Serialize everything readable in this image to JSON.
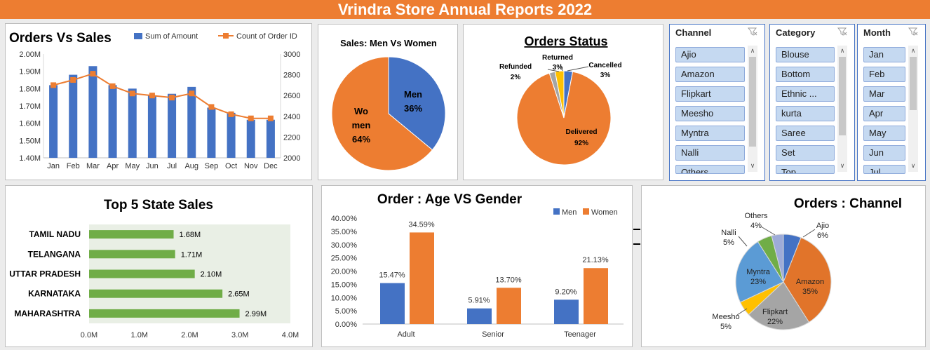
{
  "header": {
    "title": "Vrindra Store Annual Reports 2022"
  },
  "colors": {
    "orange": "#ed7d31",
    "blue": "#4472c4",
    "green": "#70ad47",
    "gray": "#a5a5a5",
    "gold": "#ffc000"
  },
  "slicers": [
    {
      "title": "Channel",
      "items": [
        "Ajio",
        "Amazon",
        "Flipkart",
        "Meesho",
        "Myntra",
        "Nalli",
        "Others"
      ]
    },
    {
      "title": "Category",
      "items": [
        "Blouse",
        "Bottom",
        "Ethnic ...",
        "kurta",
        "Saree",
        "Set",
        "Top"
      ]
    },
    {
      "title": "Month",
      "items": [
        "Jan",
        "Feb",
        "Mar",
        "Apr",
        "May",
        "Jun",
        "Jul"
      ]
    }
  ],
  "chart_data": [
    {
      "id": "orders_vs_sales",
      "type": "bar",
      "title": "Orders Vs Sales",
      "categories": [
        "Jan",
        "Feb",
        "Mar",
        "Apr",
        "May",
        "Jun",
        "Jul",
        "Aug",
        "Sep",
        "Oct",
        "Nov",
        "Dec"
      ],
      "series": [
        {
          "name": "Sum of Amount",
          "type": "bar",
          "axis": "left",
          "values": [
            1.82,
            1.88,
            1.93,
            1.82,
            1.8,
            1.76,
            1.77,
            1.81,
            1.69,
            1.66,
            1.62,
            1.62
          ]
        },
        {
          "name": "Count of Order ID",
          "type": "line",
          "axis": "right",
          "values": [
            2700,
            2750,
            2810,
            2690,
            2620,
            2600,
            2580,
            2620,
            2490,
            2420,
            2380,
            2380
          ]
        }
      ],
      "y_left": {
        "min": 1.4,
        "max": 2.0,
        "ticks": [
          "1.40M",
          "1.50M",
          "1.60M",
          "1.70M",
          "1.80M",
          "1.90M",
          "2.00M"
        ]
      },
      "y_right": {
        "min": 2000,
        "max": 3000,
        "ticks": [
          "2000",
          "2200",
          "2400",
          "2600",
          "2800",
          "3000"
        ]
      },
      "legend": "top-right"
    },
    {
      "id": "men_vs_women",
      "type": "pie",
      "title": "Sales: Men Vs Women",
      "slices": [
        {
          "label": "Men",
          "value": 36,
          "pct": "36%"
        },
        {
          "label": "Women",
          "value": 64,
          "pct": "64%",
          "label_lines": [
            "Wo",
            "men"
          ]
        }
      ]
    },
    {
      "id": "orders_status",
      "type": "pie",
      "title": "Orders Status",
      "slices": [
        {
          "label": "Cancelled",
          "value": 3,
          "pct": "3%"
        },
        {
          "label": "Delivered",
          "value": 92,
          "pct": "92%"
        },
        {
          "label": "Refunded",
          "value": 2,
          "pct": "2%"
        },
        {
          "label": "Returned",
          "value": 3,
          "pct": "3%"
        }
      ]
    },
    {
      "id": "top_state_sales",
      "type": "bar",
      "orientation": "horizontal",
      "title": "Top 5 State Sales",
      "categories": [
        "TAMIL NADU",
        "TELANGANA",
        "UTTAR PRADESH",
        "KARNATAKA",
        "MAHARASHTRA"
      ],
      "values": [
        1.68,
        1.71,
        2.1,
        2.65,
        2.99
      ],
      "data_labels": [
        "1.68M",
        "1.71M",
        "2.10M",
        "2.65M",
        "2.99M"
      ],
      "xlim": [
        0,
        4
      ],
      "x_ticks": [
        "0.0M",
        "1.0M",
        "2.0M",
        "3.0M",
        "4.0M"
      ]
    },
    {
      "id": "age_vs_gender",
      "type": "bar",
      "title": "Order : Age VS Gender",
      "categories": [
        "Adult",
        "Senior",
        "Teenager"
      ],
      "series": [
        {
          "name": "Men",
          "values": [
            15.47,
            5.91,
            9.2
          ],
          "labels": [
            "15.47%",
            "5.91%",
            "9.20%"
          ]
        },
        {
          "name": "Women",
          "values": [
            34.59,
            13.7,
            21.13
          ],
          "labels": [
            "34.59%",
            "13.70%",
            "21.13%"
          ]
        }
      ],
      "ylim": [
        0,
        40
      ],
      "y_ticks": [
        "0.00%",
        "5.00%",
        "10.00%",
        "15.00%",
        "20.00%",
        "25.00%",
        "30.00%",
        "35.00%",
        "40.00%"
      ],
      "legend": "top-right"
    },
    {
      "id": "orders_channel",
      "type": "pie",
      "title": "Orders : Channel",
      "slices": [
        {
          "label": "Ajio",
          "value": 6,
          "pct": "6%"
        },
        {
          "label": "Amazon",
          "value": 35,
          "pct": "35%"
        },
        {
          "label": "Flipkart",
          "value": 22,
          "pct": "22%"
        },
        {
          "label": "Meesho",
          "value": 5,
          "pct": "5%"
        },
        {
          "label": "Myntra",
          "value": 23,
          "pct": "23%"
        },
        {
          "label": "Nalli",
          "value": 5,
          "pct": "5%"
        },
        {
          "label": "Others",
          "value": 4,
          "pct": "4%"
        }
      ]
    }
  ]
}
